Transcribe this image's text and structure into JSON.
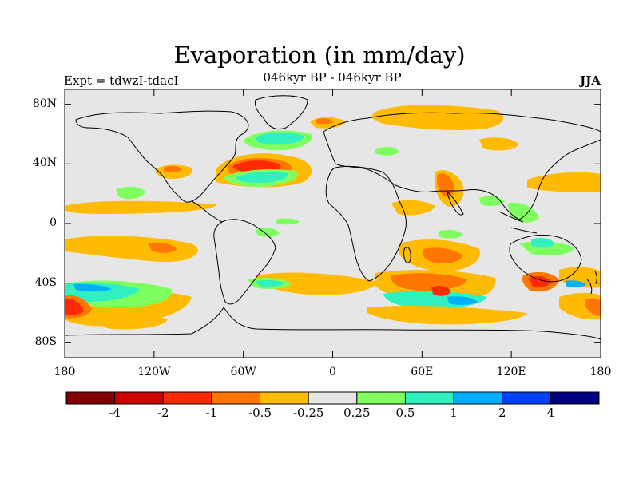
{
  "title": "Evaporation (in mm/day)",
  "left_label": "Expt = tdwzI-tdacI",
  "center_label": "046kyr BP - 046kyr BP",
  "right_label": "JJA",
  "lat_ticks": [
    {
      "label": "80N",
      "lat": 80
    },
    {
      "label": "40N",
      "lat": 40
    },
    {
      "label": "0",
      "lat": 0
    },
    {
      "label": "40S",
      "lat": -40
    },
    {
      "label": "80S",
      "lat": -80
    }
  ],
  "lon_ticks": [
    {
      "label": "180",
      "lon": -180
    },
    {
      "label": "120W",
      "lon": -120
    },
    {
      "label": "60W",
      "lon": -60
    },
    {
      "label": "0",
      "lon": 0
    },
    {
      "label": "60E",
      "lon": 60
    },
    {
      "label": "120E",
      "lon": 120
    },
    {
      "label": "180",
      "lon": 180
    }
  ],
  "colorbar": {
    "colors": [
      "#800000",
      "#cc0000",
      "#ff2a00",
      "#ff7700",
      "#ffbb00",
      "#e6e6e6",
      "#80ff60",
      "#30f0c0",
      "#00b0ff",
      "#0040ff",
      "#000080"
    ],
    "labels": [
      "-4",
      "-2",
      "-1",
      "-0.5",
      "-0.25",
      "0.25",
      "0.5",
      "1",
      "2",
      "4"
    ]
  }
}
